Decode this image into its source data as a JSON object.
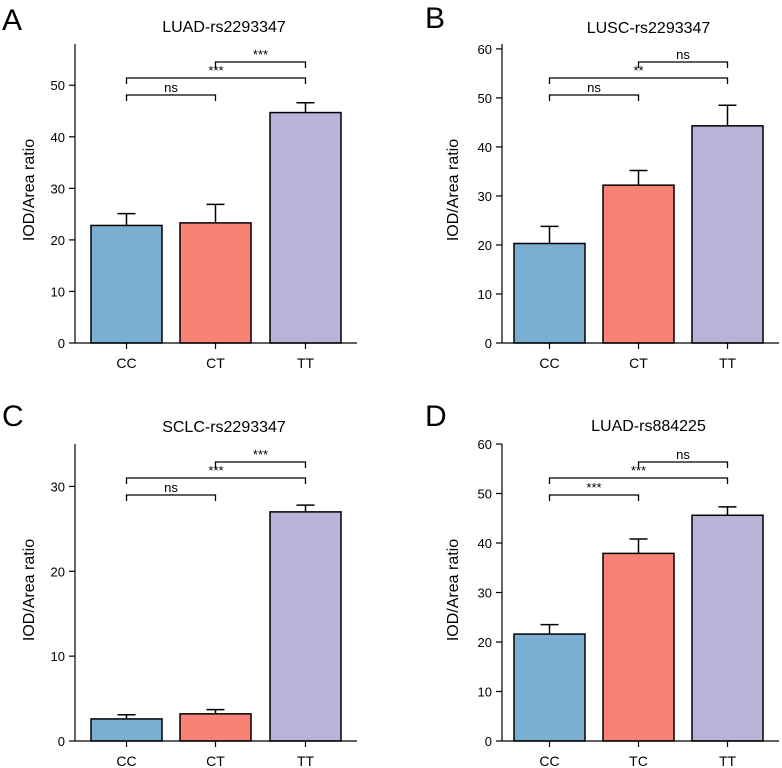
{
  "colors": {
    "bar_colors": [
      "#7aaed3",
      "#f88275",
      "#b9b3d9"
    ],
    "stroke": "#000000"
  },
  "chart_data": [
    {
      "type": "bar",
      "panel": "A",
      "title": "LUAD-rs2293347",
      "ylabel": "IOD/Area ratio",
      "xlabel": "",
      "categories": [
        "CC",
        "CT",
        "TT"
      ],
      "values": [
        22.8,
        23.3,
        44.7
      ],
      "errors": [
        2.3,
        3.6,
        1.9
      ],
      "ylim": [
        0,
        58
      ],
      "yticks": [
        0,
        10,
        20,
        30,
        40,
        50
      ],
      "significance": [
        {
          "from": 0,
          "to": 1,
          "label": "ns",
          "level": 0
        },
        {
          "from": 0,
          "to": 2,
          "label": "***",
          "level": 1
        },
        {
          "from": 1,
          "to": 2,
          "label": "***",
          "level": 2
        }
      ]
    },
    {
      "type": "bar",
      "panel": "B",
      "title": "LUSC-rs2293347",
      "ylabel": "IOD/Area ratio",
      "xlabel": "",
      "categories": [
        "CC",
        "CT",
        "TT"
      ],
      "values": [
        20.3,
        32.2,
        44.3
      ],
      "errors": [
        3.5,
        3.0,
        4.2
      ],
      "ylim": [
        0,
        61
      ],
      "yticks": [
        0,
        10,
        20,
        30,
        40,
        50,
        60
      ],
      "significance": [
        {
          "from": 0,
          "to": 1,
          "label": "ns",
          "level": 0
        },
        {
          "from": 0,
          "to": 2,
          "label": "**",
          "level": 1
        },
        {
          "from": 1,
          "to": 2,
          "label": "ns",
          "level": 2
        }
      ]
    },
    {
      "type": "bar",
      "panel": "C",
      "title": "SCLC-rs2293347",
      "ylabel": "IOD/Area ratio",
      "xlabel": "",
      "categories": [
        "CC",
        "CT",
        "TT"
      ],
      "values": [
        2.6,
        3.2,
        27.0
      ],
      "errors": [
        0.5,
        0.5,
        0.8
      ],
      "ylim": [
        0,
        35
      ],
      "yticks": [
        0,
        10,
        20,
        30
      ],
      "significance": [
        {
          "from": 0,
          "to": 1,
          "label": "ns",
          "level": 0
        },
        {
          "from": 0,
          "to": 2,
          "label": "***",
          "level": 1
        },
        {
          "from": 1,
          "to": 2,
          "label": "***",
          "level": 2
        }
      ]
    },
    {
      "type": "bar",
      "panel": "D",
      "title": "LUAD-rs884225",
      "ylabel": "IOD/Area ratio",
      "xlabel": "",
      "categories": [
        "CC",
        "TC",
        "TT"
      ],
      "values": [
        21.6,
        37.9,
        45.6
      ],
      "errors": [
        1.9,
        2.9,
        1.7
      ],
      "ylim": [
        0,
        60
      ],
      "yticks": [
        0,
        10,
        20,
        30,
        40,
        50,
        60
      ],
      "significance": [
        {
          "from": 0,
          "to": 1,
          "label": "***",
          "level": 0
        },
        {
          "from": 0,
          "to": 2,
          "label": "***",
          "level": 1
        },
        {
          "from": 1,
          "to": 2,
          "label": "ns",
          "level": 2
        }
      ]
    }
  ]
}
